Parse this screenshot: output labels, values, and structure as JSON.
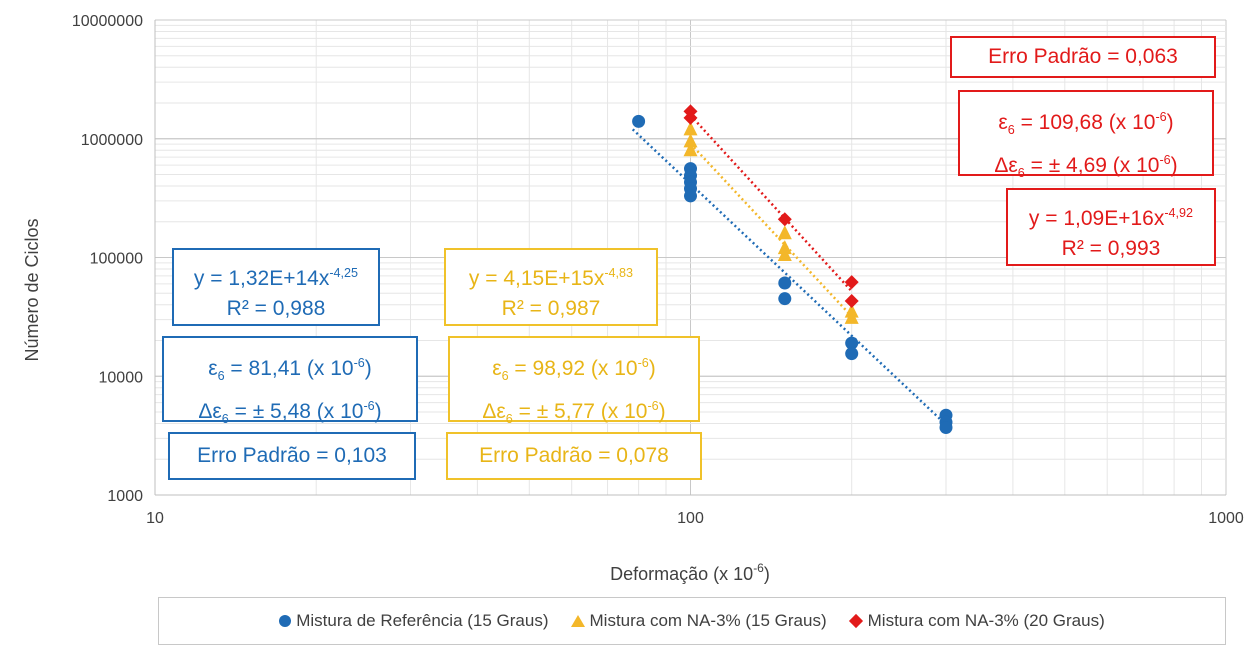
{
  "chart_data": {
    "type": "scatter",
    "xscale": "log",
    "yscale": "log",
    "xlim": [
      10,
      1000
    ],
    "ylim": [
      1000,
      10000000
    ],
    "xlabel": "Deformação  (x 10",
    "xlabel_sup": "-6",
    "xlabel_close": ")",
    "ylabel": "Número de Ciclos",
    "x_ticks": [
      "10",
      "100",
      "1000"
    ],
    "y_ticks": [
      "1000",
      "10000",
      "100000",
      "1000000",
      "10000000"
    ],
    "grid": true,
    "legend_position": "bottom",
    "series": [
      {
        "name": "Mistura de Referência (15 Graus)",
        "color": "#1f6bb5",
        "marker": "circle",
        "points": [
          [
            80,
            1400000
          ],
          [
            100,
            560000
          ],
          [
            100,
            490000
          ],
          [
            100,
            430000
          ],
          [
            100,
            380000
          ],
          [
            100,
            330000
          ],
          [
            150,
            61000
          ],
          [
            150,
            45000
          ],
          [
            200,
            19000
          ],
          [
            200,
            15500
          ],
          [
            300,
            4700
          ],
          [
            300,
            4100
          ],
          [
            300,
            3700
          ]
        ],
        "trend": {
          "a": 132000000000000.0,
          "b": -4.25,
          "x_range": [
            78,
            300
          ]
        },
        "equation": "y = 1,32E+14x",
        "exponent": "-4,25",
        "r2": "R² = 0,988",
        "eps_label": "= 81,41 (x 10",
        "delta_label": "= ± 5,48 (x 10",
        "error_label": "Erro Padrão = 0,103"
      },
      {
        "name": "Mistura com NA-3% (15 Graus)",
        "color": "#f3b72a",
        "marker": "triangle",
        "points": [
          [
            100,
            1200000
          ],
          [
            100,
            950000
          ],
          [
            100,
            800000
          ],
          [
            150,
            160000
          ],
          [
            150,
            120000
          ],
          [
            150,
            105000
          ],
          [
            200,
            35000
          ],
          [
            200,
            31000
          ]
        ],
        "trend": {
          "a": 4150000000000000.0,
          "b": -4.83,
          "x_range": [
            100,
            200
          ]
        },
        "equation": "y = 4,15E+15x",
        "exponent": "-4,83",
        "r2": "R² = 0,987",
        "eps_label": "= 98,92 (x 10",
        "delta_label": "= ± 5,77 (x 10",
        "error_label": "Erro Padrão = 0,078"
      },
      {
        "name": "Mistura com NA-3% (20 Graus)",
        "color": "#e21a1a",
        "marker": "diamond",
        "points": [
          [
            100,
            1700000
          ],
          [
            100,
            1500000
          ],
          [
            150,
            210000
          ],
          [
            200,
            62000
          ],
          [
            200,
            43000
          ]
        ],
        "trend": {
          "a": 1.09e+16,
          "b": -4.92,
          "x_range": [
            100,
            200
          ]
        },
        "equation": "y = 1,09E+16x",
        "exponent": "-4,92",
        "r2": "R² = 0,993",
        "eps_label": "= 109,68 (x 10",
        "delta_label": "= ± 4,69 (x 10",
        "error_label": "Erro Padrão = 0,063"
      }
    ]
  },
  "symbols": {
    "epsilon": "ε",
    "delta_epsilon": "Δε",
    "sub6": "6",
    "neg6": "-6",
    "close": ")"
  }
}
